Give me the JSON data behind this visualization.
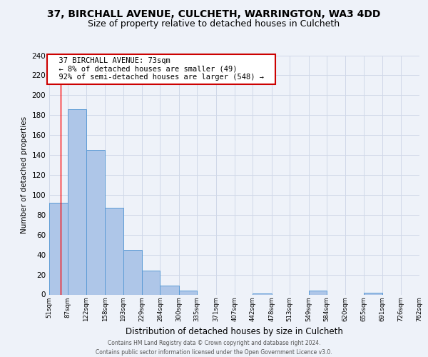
{
  "title": "37, BIRCHALL AVENUE, CULCHETH, WARRINGTON, WA3 4DD",
  "subtitle": "Size of property relative to detached houses in Culcheth",
  "xlabel": "Distribution of detached houses by size in Culcheth",
  "ylabel": "Number of detached properties",
  "footer_line1": "Contains HM Land Registry data © Crown copyright and database right 2024.",
  "footer_line2": "Contains public sector information licensed under the Open Government Licence v3.0.",
  "bin_edges": [
    51,
    87,
    122,
    158,
    193,
    229,
    264,
    300,
    335,
    371,
    407,
    442,
    478,
    513,
    549,
    584,
    620,
    655,
    691,
    726,
    762
  ],
  "bin_labels": [
    "51sqm",
    "87sqm",
    "122sqm",
    "158sqm",
    "193sqm",
    "229sqm",
    "264sqm",
    "300sqm",
    "335sqm",
    "371sqm",
    "407sqm",
    "442sqm",
    "478sqm",
    "513sqm",
    "549sqm",
    "584sqm",
    "620sqm",
    "655sqm",
    "691sqm",
    "726sqm",
    "762sqm"
  ],
  "bar_heights": [
    92,
    186,
    145,
    87,
    45,
    24,
    9,
    4,
    0,
    0,
    0,
    1,
    0,
    0,
    4,
    0,
    0,
    2,
    0,
    0
  ],
  "bar_color": "#aec6e8",
  "bar_edge_color": "#5b9bd5",
  "grid_color": "#d0d8e8",
  "background_color": "#eef2f9",
  "red_line_x": 73,
  "annotation_title": "37 BIRCHALL AVENUE: 73sqm",
  "annotation_line1": "← 8% of detached houses are smaller (49)",
  "annotation_line2": "92% of semi-detached houses are larger (548) →",
  "annotation_box_color": "#ffffff",
  "annotation_box_edge": "#cc0000",
  "ylim": [
    0,
    240
  ],
  "yticks": [
    0,
    20,
    40,
    60,
    80,
    100,
    120,
    140,
    160,
    180,
    200,
    220,
    240
  ],
  "title_fontsize": 10,
  "subtitle_fontsize": 9
}
